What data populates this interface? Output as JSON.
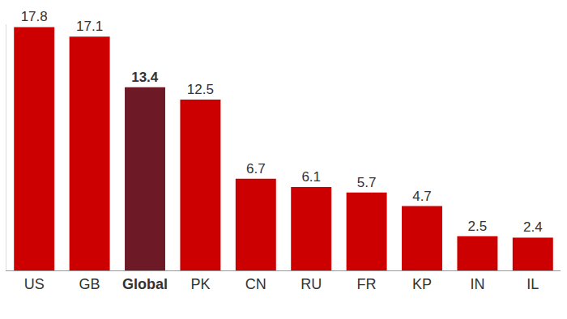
{
  "chart_data": {
    "type": "bar",
    "categories": [
      "US",
      "GB",
      "Global",
      "PK",
      "CN",
      "RU",
      "FR",
      "KP",
      "IN",
      "IL"
    ],
    "values": [
      17.8,
      17.1,
      13.4,
      12.5,
      6.7,
      6.1,
      5.7,
      4.7,
      2.5,
      2.4
    ],
    "colors": [
      "#cc0000",
      "#cc0000",
      "#6e1a26",
      "#cc0000",
      "#cc0000",
      "#cc0000",
      "#cc0000",
      "#cc0000",
      "#cc0000",
      "#cc0000"
    ],
    "ylim": [
      0,
      18
    ],
    "data_labels": true,
    "tick_labels": "x",
    "grid": false
  }
}
